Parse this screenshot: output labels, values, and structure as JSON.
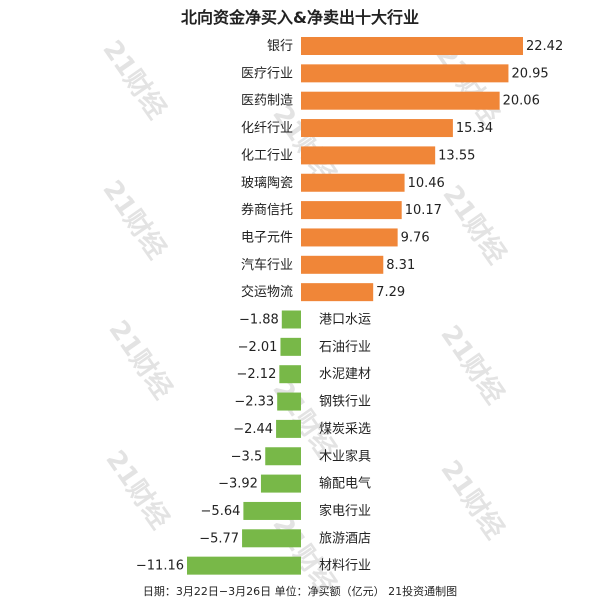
{
  "chart_data": {
    "type": "bar",
    "orientation": "horizontal",
    "title": "北向资金净买入&净卖出十大行业",
    "categories": [
      "银行",
      "医疗行业",
      "医药制造",
      "化纤行业",
      "化工行业",
      "玻璃陶瓷",
      "券商信托",
      "电子元件",
      "汽车行业",
      "交运物流",
      "港口水运",
      "石油行业",
      "水泥建材",
      "钢铁行业",
      "煤炭采选",
      "木业家具",
      "输配电气",
      "家电行业",
      "旅游酒店",
      "材料行业"
    ],
    "values": [
      22.42,
      20.95,
      20.06,
      15.34,
      13.55,
      10.46,
      10.17,
      9.76,
      8.31,
      7.29,
      -1.88,
      -2.01,
      -2.12,
      -2.33,
      -2.44,
      -3.5,
      -3.92,
      -5.64,
      -5.77,
      -11.16
    ],
    "value_labels": [
      "22.42",
      "20.95",
      "20.06",
      "15.34",
      "13.55",
      "10.46",
      "10.17",
      "9.76",
      "8.31",
      "7.29",
      "−1.88",
      "−2.01",
      "−2.12",
      "−2.33",
      "−2.44",
      "−3.5",
      "−3.92",
      "−5.64",
      "−5.77",
      "−11.16"
    ],
    "positive_color": "#f08638",
    "negative_color": "#78b848",
    "xlim": [
      -11.16,
      22.42
    ],
    "xlabel": "",
    "ylabel": "",
    "grid": false
  },
  "footer": "日期：3月22日−3月26日 单位：净买额（亿元） 21投资通制图",
  "watermark": "21财经",
  "colors": {
    "title": "#222222",
    "text": "#222222"
  }
}
